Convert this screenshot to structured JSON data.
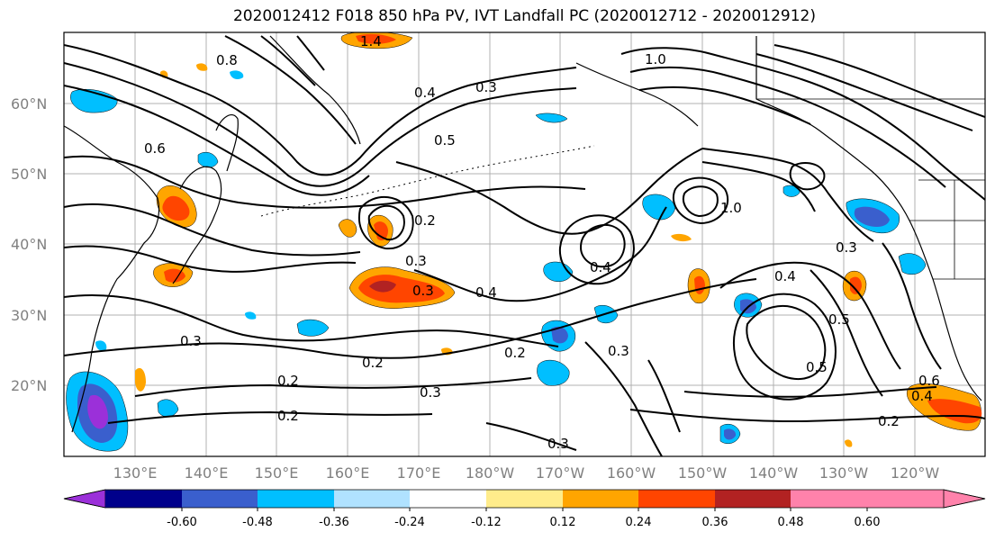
{
  "title": "2020012412 F018 850 hPa PV, IVT Landfall PC (2020012712 - 2020012912)",
  "lat_labels": [
    "60°N",
    "50°N",
    "40°N",
    "30°N",
    "20°N"
  ],
  "lon_labels": [
    "130°E",
    "140°E",
    "150°E",
    "160°E",
    "170°E",
    "180°W",
    "170°W",
    "160°W",
    "150°W",
    "140°W",
    "130°W",
    "120°W"
  ],
  "contour_labels": [
    "1.4",
    "1.0",
    "0.8",
    "0.4",
    "0.3",
    "0.5",
    "0.6",
    "1.0",
    "0.2",
    "0.3",
    "0.3",
    "0.4",
    "0.4",
    "0.4",
    "0.3",
    "0.2",
    "0.2",
    "0.3",
    "0.2",
    "0.3",
    "0.3",
    "0.5",
    "0.6",
    "0.4",
    "0.2",
    "0.5",
    "0.3",
    "0.2"
  ],
  "colorbar": {
    "ticks": [
      "-0.60",
      "-0.48",
      "-0.36",
      "-0.24",
      "-0.12",
      "0.12",
      "0.24",
      "0.36",
      "0.48",
      "0.60"
    ],
    "colors": [
      "#9b30d9",
      "#00008b",
      "#3a5fcd",
      "#00bfff",
      "#b0e2ff",
      "#ffffff",
      "#ffec8b",
      "#ffa500",
      "#ff4500",
      "#b22222",
      "#ff82ab",
      "#ff82ab"
    ]
  }
}
